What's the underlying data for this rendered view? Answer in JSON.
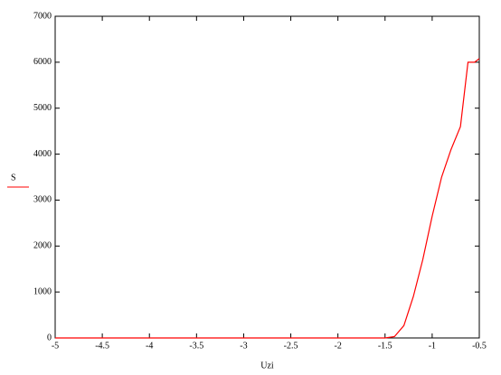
{
  "chart_data": {
    "type": "line",
    "x_label": "Uzi",
    "x": [
      -5,
      -1.5,
      -1.4,
      -1.3,
      -1.2,
      -1.1,
      -1.0,
      -0.9,
      -0.8,
      -0.7,
      -0.62,
      -0.55,
      -0.5
    ],
    "series": [
      {
        "name": "S",
        "color": "#ff0000",
        "values": [
          0,
          0,
          30,
          270,
          900,
          1700,
          2650,
          3500,
          4100,
          4600,
          6000,
          6000,
          6080
        ]
      }
    ],
    "xlim": [
      -5,
      -0.5
    ],
    "xticks": [
      -5,
      -4.5,
      -4,
      -3.5,
      -3,
      -2.5,
      -2,
      -1.5,
      -1,
      -0.5
    ],
    "ylim": [
      0,
      7000
    ],
    "yticks": [
      0,
      1000,
      2000,
      3000,
      4000,
      5000,
      6000,
      7000
    ]
  }
}
